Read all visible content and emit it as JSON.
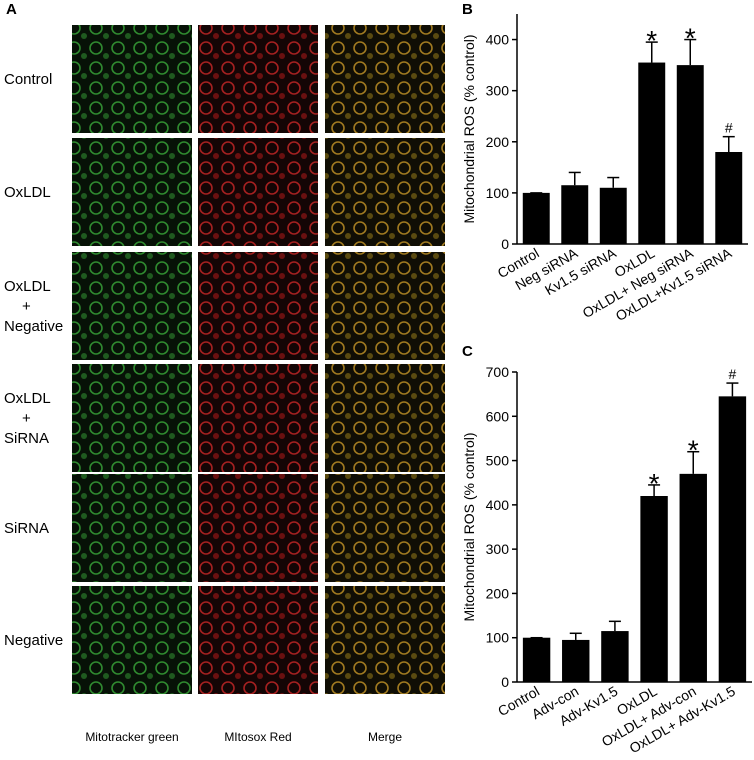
{
  "panel_a": {
    "label": "A",
    "rows": [
      "Control",
      "OxLDL",
      "OxLDL\n+\nNegative",
      "OxLDL\n+\nSiRNA",
      "SiRNA",
      "Negative"
    ],
    "columns": [
      "Mitotracker green",
      "MItosox Red",
      "Merge"
    ]
  },
  "chart_data": [
    {
      "type": "bar",
      "panel": "B",
      "ylabel": "Mitochondrial ROS (% control)",
      "categories": [
        "Control",
        "Neg siRNA",
        "Kv1.5 siRNA",
        "OxLDL",
        "OxLDL+ Neg siRNA",
        "OxLDL+Kv1.5  siRNA"
      ],
      "values": [
        100,
        115,
        110,
        355,
        350,
        180
      ],
      "errors": [
        0,
        25,
        20,
        40,
        50,
        30
      ],
      "markers": [
        null,
        null,
        null,
        "*",
        "*",
        "#"
      ],
      "color": "#000000",
      "ylim": [
        0,
        450
      ],
      "yticks": [
        0,
        100,
        200,
        300,
        400
      ]
    },
    {
      "type": "bar",
      "panel": "C",
      "ylabel": "Mitochondrial ROS (% control)",
      "categories": [
        "Control",
        "Adv-con",
        "Adv-Kv1.5",
        "OxLDL",
        "OxLDL+ Adv-con",
        "OxLDL+ Adv-Kv1.5"
      ],
      "values": [
        100,
        95,
        115,
        420,
        470,
        645
      ],
      "errors": [
        0,
        15,
        22,
        25,
        50,
        30
      ],
      "markers": [
        null,
        null,
        null,
        "*",
        "*",
        "#"
      ],
      "color": "#000000",
      "ylim": [
        0,
        700
      ],
      "yticks": [
        0,
        100,
        200,
        300,
        400,
        500,
        600,
        700
      ]
    }
  ]
}
